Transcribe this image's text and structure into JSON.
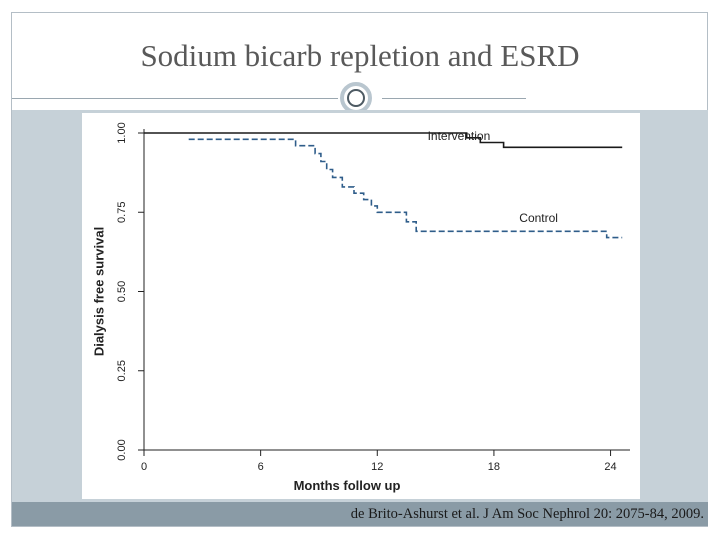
{
  "slide": {
    "title": "Sodium bicarb repletion and ESRD",
    "citation": "de Brito-Ashurst et al. J Am Soc Nephrol 20: 2075-84, 2009."
  },
  "chart_data": {
    "type": "line",
    "xlabel": "Months follow up",
    "ylabel": "Dialysis free survival",
    "xlim": [
      0,
      25
    ],
    "ylim": [
      0,
      1
    ],
    "x_ticks": [
      0,
      6,
      12,
      18,
      24
    ],
    "x_tick_labels": [
      "0",
      "6",
      "12",
      "18",
      "24"
    ],
    "y_ticks": [
      0,
      0.25,
      0.5,
      0.75,
      1
    ],
    "y_tick_labels": [
      "0.00",
      "0.25",
      "0.50",
      "0.75",
      "1.00"
    ],
    "grid": false,
    "legend": "inline labels",
    "series": [
      {
        "name": "Intervention",
        "style": "solid",
        "color": "#1a1a1a",
        "step_points": [
          [
            0,
            1.0
          ],
          [
            16.6,
            1.0
          ],
          [
            16.6,
            0.985
          ],
          [
            17.3,
            0.985
          ],
          [
            17.3,
            0.97
          ],
          [
            18.5,
            0.97
          ],
          [
            18.5,
            0.955
          ],
          [
            24.6,
            0.955
          ]
        ]
      },
      {
        "name": "Control",
        "style": "dashed",
        "color": "#2f5d8a",
        "step_points": [
          [
            2.3,
            0.98
          ],
          [
            7.8,
            0.98
          ],
          [
            7.8,
            0.96
          ],
          [
            8.8,
            0.96
          ],
          [
            8.8,
            0.935
          ],
          [
            9.1,
            0.935
          ],
          [
            9.1,
            0.91
          ],
          [
            9.4,
            0.91
          ],
          [
            9.4,
            0.885
          ],
          [
            9.7,
            0.885
          ],
          [
            9.7,
            0.86
          ],
          [
            10.2,
            0.86
          ],
          [
            10.2,
            0.83
          ],
          [
            10.8,
            0.83
          ],
          [
            10.8,
            0.81
          ],
          [
            11.3,
            0.81
          ],
          [
            11.3,
            0.79
          ],
          [
            11.7,
            0.79
          ],
          [
            11.7,
            0.77
          ],
          [
            12.0,
            0.77
          ],
          [
            12.0,
            0.75
          ],
          [
            13.5,
            0.75
          ],
          [
            13.5,
            0.72
          ],
          [
            14.0,
            0.72
          ],
          [
            14.0,
            0.69
          ],
          [
            23.8,
            0.69
          ],
          [
            23.8,
            0.67
          ],
          [
            24.6,
            0.67
          ]
        ]
      }
    ]
  }
}
